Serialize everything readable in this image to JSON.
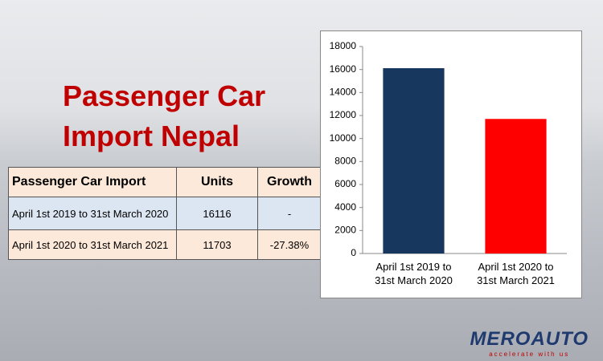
{
  "title": [
    "Passenger Car",
    "Import Nepal"
  ],
  "table": {
    "header": [
      "Passenger Car Import",
      "Units",
      "Growth"
    ],
    "rows": [
      [
        "April 1st 2019 to 31st March 2020",
        "16116",
        "-"
      ],
      [
        "April 1st 2020 to 31st March 2021",
        "11703",
        "-27.38%"
      ]
    ]
  },
  "chart_data": {
    "type": "bar",
    "categories": [
      "April 1st 2019 to 31st March 2020",
      "April 1st 2020 to 31st March 2021"
    ],
    "values": [
      16116,
      11703
    ],
    "colors": [
      "#17375e",
      "#ff0000"
    ],
    "ylim": [
      0,
      18000
    ],
    "yticks": [
      0,
      2000,
      4000,
      6000,
      8000,
      10000,
      12000,
      14000,
      16000,
      18000
    ],
    "grid": false
  },
  "logo": {
    "name": "MEROAUTO",
    "tagline": "accelerate with us"
  }
}
